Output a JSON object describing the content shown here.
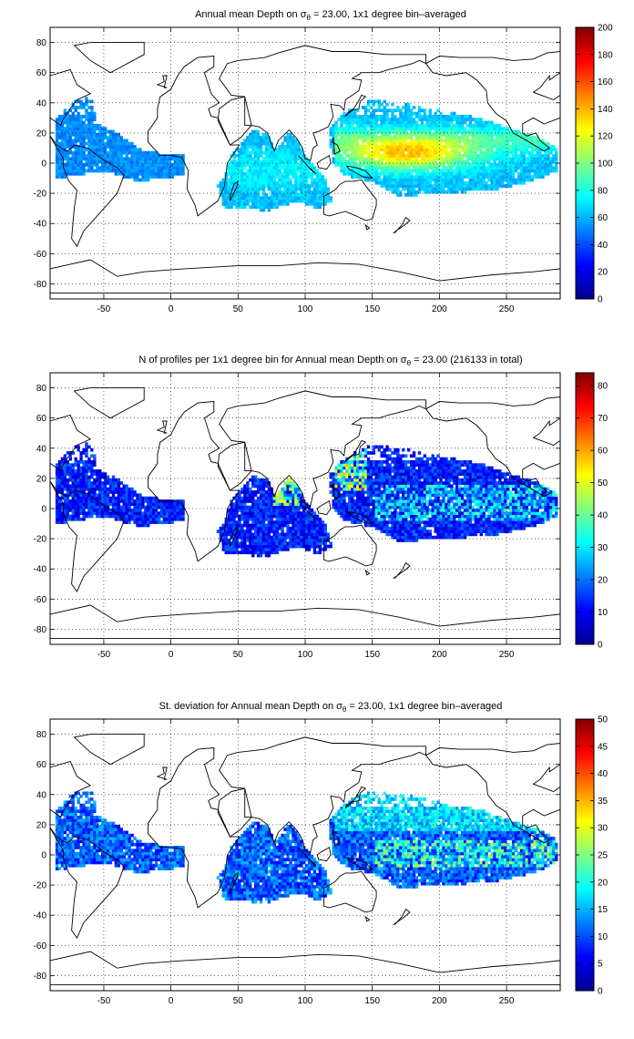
{
  "figure": {
    "panels": [
      {
        "title_pre": "Annual mean Depth on ",
        "title_sym": "σ",
        "title_sub": "θ",
        "title_post": " = 23.00, 1x1 degree bin–averaged",
        "colorbar": {
          "min": 0,
          "max": 200,
          "ticks": [
            "0",
            "20",
            "40",
            "60",
            "80",
            "100",
            "120",
            "140",
            "160",
            "180",
            "200"
          ]
        },
        "field": "depth"
      },
      {
        "title_pre": "N of profiles per 1x1 degree bin for Annual mean Depth on ",
        "title_sym": "σ",
        "title_sub": "θ",
        "title_post": " = 23.00 (216133 in total)",
        "colorbar": {
          "min": 0,
          "max": 84,
          "ticks": [
            "0",
            "10",
            "20",
            "30",
            "40",
            "50",
            "60",
            "70",
            "80"
          ]
        },
        "field": "count"
      },
      {
        "title_pre": "St. deviation for Annual mean Depth on ",
        "title_sym": "σ",
        "title_sub": "θ",
        "title_post": " = 23.00, 1x1 degree bin–averaged",
        "colorbar": {
          "min": 0,
          "max": 50,
          "ticks": [
            "0",
            "5",
            "10",
            "15",
            "20",
            "25",
            "30",
            "35",
            "40",
            "45",
            "50"
          ]
        },
        "field": "std"
      }
    ],
    "x_ticks": [
      "-50",
      "0",
      "50",
      "100",
      "150",
      "200",
      "250"
    ],
    "y_ticks": [
      "80",
      "60",
      "40",
      "20",
      "0",
      "-20",
      "-40",
      "-60",
      "-80"
    ],
    "xlim": [
      -90,
      290
    ],
    "ylim": [
      -90,
      90
    ],
    "colormap": "jet",
    "grid": "dotted",
    "coastline_color": "#000000"
  }
}
